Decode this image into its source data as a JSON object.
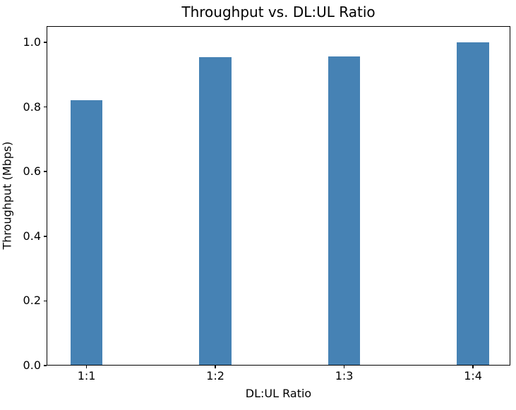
{
  "chart_data": {
    "type": "bar",
    "title": "Throughput vs. DL:UL Ratio",
    "xlabel": "DL:UL Ratio",
    "ylabel": "Throughput (Mbps)",
    "categories": [
      "1:1",
      "1:2",
      "1:3",
      "1:4"
    ],
    "values": [
      0.82,
      0.955,
      0.957,
      1.0
    ],
    "yticks": [
      0.0,
      0.2,
      0.4,
      0.6,
      0.8,
      1.0
    ],
    "ytick_labels": [
      "0.0",
      "0.2",
      "0.4",
      "0.6",
      "0.8",
      "1.0"
    ],
    "xlim": [
      -0.31,
      3.29
    ],
    "ylim": [
      0,
      1.05
    ],
    "bar_width": 0.25,
    "bar_color": "#4682b4",
    "spine_color": "#000000",
    "text_color": "#000000",
    "grid": false,
    "legend_position": "none",
    "background": "#ffffff"
  }
}
